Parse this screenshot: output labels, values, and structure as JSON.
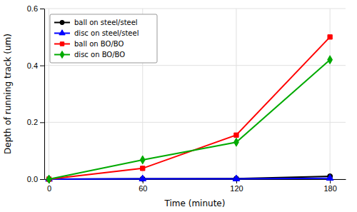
{
  "chart_data": {
    "type": "line",
    "x": [
      0,
      60,
      120,
      180
    ],
    "series": [
      {
        "name": "ball on steel/steel",
        "color": "#000000",
        "marker": "circle",
        "values": [
          0,
          0.001,
          0.002,
          0.01
        ]
      },
      {
        "name": "disc on steel/steel",
        "color": "#0000FF",
        "marker": "triangle",
        "values": [
          0,
          0.001,
          0.001,
          0.003
        ]
      },
      {
        "name": "ball on BO/BO",
        "color": "#FF0000",
        "marker": "square",
        "values": [
          0,
          0.038,
          0.155,
          0.5
        ]
      },
      {
        "name": "disc on BO/BO",
        "color": "#00AA00",
        "marker": "diamond",
        "values": [
          0,
          0.068,
          0.13,
          0.42
        ]
      }
    ],
    "xlabel": "Time (minute)",
    "ylabel": "Depth of running track (um)",
    "xlim": [
      -3,
      190
    ],
    "ylim": [
      0,
      0.6
    ],
    "xticks": [
      0,
      60,
      120,
      180
    ],
    "yticks": [
      {
        "value": 0.0,
        "label": "0.0"
      },
      0.2,
      0.4,
      0.6
    ],
    "grid": true,
    "legend": "upper left"
  }
}
